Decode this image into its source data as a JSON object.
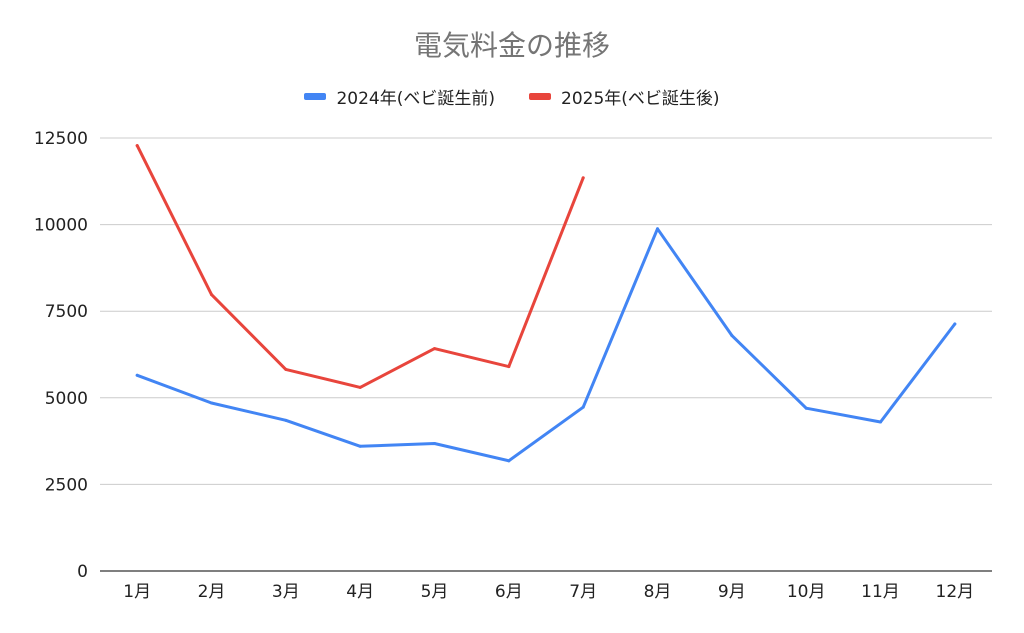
{
  "chart_data": {
    "type": "line",
    "title": "電気料金の推移",
    "xlabel": "",
    "ylabel": "",
    "ylim": [
      0,
      12500
    ],
    "yticks": [
      0,
      2500,
      5000,
      7500,
      10000,
      12500
    ],
    "categories": [
      "1月",
      "2月",
      "3月",
      "4月",
      "5月",
      "6月",
      "7月",
      "8月",
      "9月",
      "10月",
      "11月",
      "12月"
    ],
    "grid": true,
    "legend_position": "top",
    "series": [
      {
        "name": "2024年(ベビ誕生前)",
        "color": "#4285f4",
        "values": [
          5650,
          4850,
          4350,
          3600,
          3680,
          3180,
          4730,
          9880,
          6800,
          4700,
          4300,
          7130
        ]
      },
      {
        "name": "2025年(ベビ誕生後)",
        "color": "#e8453c",
        "values": [
          12280,
          7980,
          5820,
          5300,
          6420,
          5900,
          11350,
          null,
          null,
          null,
          null,
          null
        ]
      }
    ]
  }
}
